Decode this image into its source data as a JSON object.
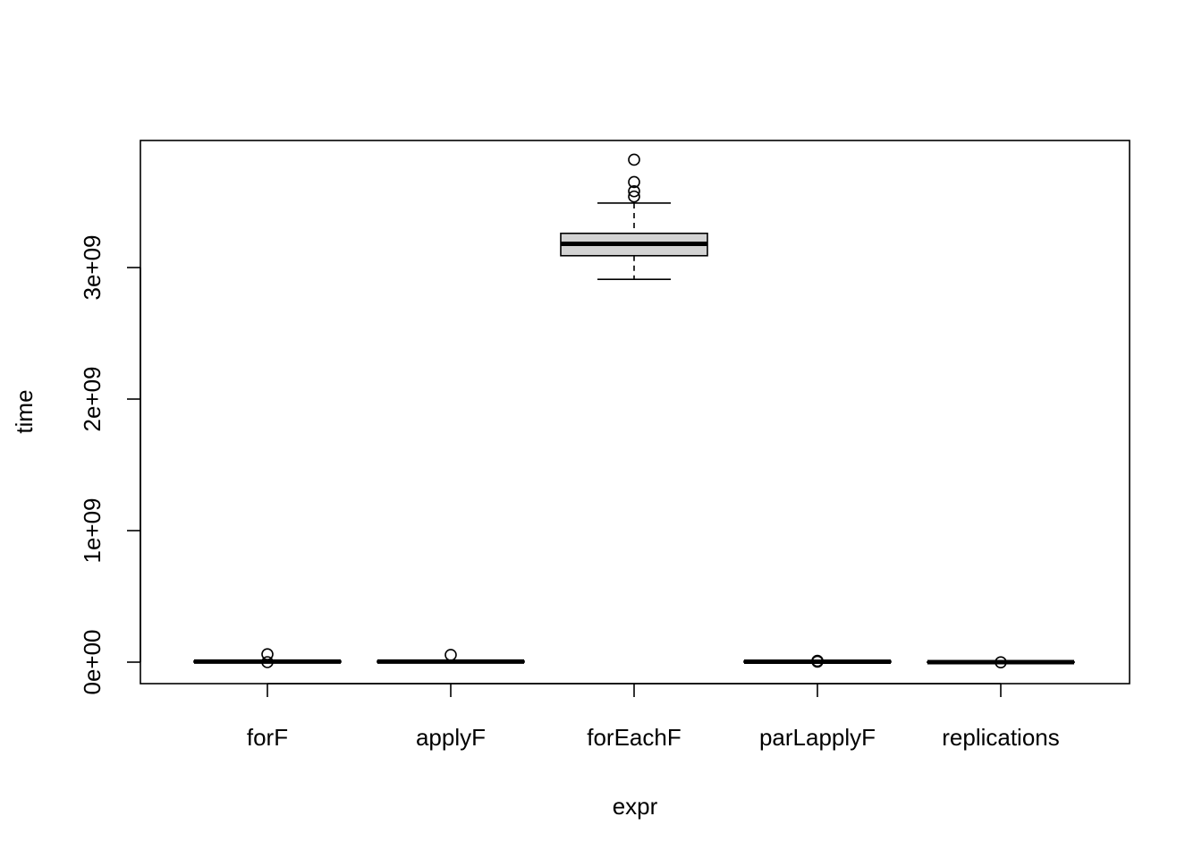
{
  "chart_data": {
    "type": "boxplot",
    "title": "",
    "xlabel": "expr",
    "ylabel": "time",
    "categories": [
      "forF",
      "applyF",
      "forEachF",
      "parLapplyF",
      "replications"
    ],
    "yticks": [
      0,
      1000000000,
      2000000000,
      3000000000
    ],
    "ytick_labels": [
      "0e+00",
      "1e+09",
      "2e+09",
      "3e+09"
    ],
    "ylim": [
      -150000000,
      3970000000
    ],
    "grid": false,
    "boxes": [
      {
        "name": "forF",
        "whisker_low": 0,
        "q1": 0,
        "median": 4000000,
        "q3": 8000000,
        "whisker_high": 12000000,
        "outliers": [
          60000000,
          0
        ]
      },
      {
        "name": "applyF",
        "whisker_low": 0,
        "q1": 0,
        "median": 4000000,
        "q3": 8000000,
        "whisker_high": 12000000,
        "outliers": [
          55000000
        ]
      },
      {
        "name": "forEachF",
        "whisker_low": 2910000000,
        "q1": 3090000000,
        "median": 3180000000,
        "q3": 3260000000,
        "whisker_high": 3490000000,
        "outliers": [
          3820000000,
          3650000000,
          3580000000,
          3540000000
        ]
      },
      {
        "name": "parLapplyF",
        "whisker_low": 0,
        "q1": 0,
        "median": 3000000,
        "q3": 7000000,
        "whisker_high": 10000000,
        "outliers": [
          10000000,
          4000000
        ]
      },
      {
        "name": "replications",
        "whisker_low": -2000000,
        "q1": -2000000,
        "median": 0,
        "q3": 2000000,
        "whisker_high": 4000000,
        "outliers": [
          -1000000
        ]
      }
    ]
  }
}
